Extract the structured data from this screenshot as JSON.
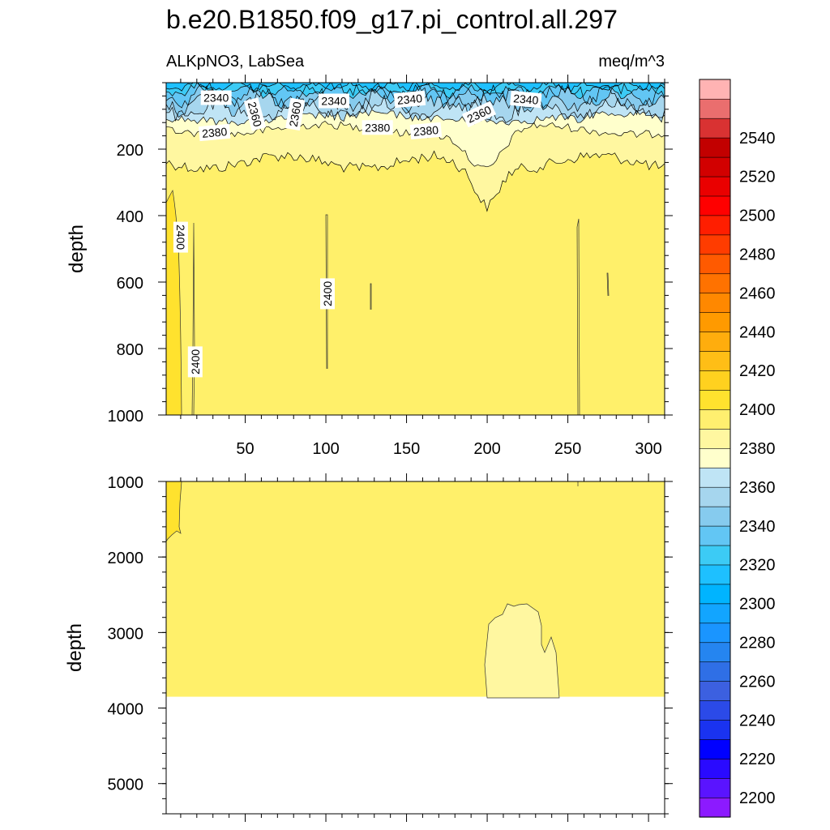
{
  "chart_data": {
    "type": "contour",
    "title": "b.e20.B1850.f09_g17.pi_control.all.297",
    "variable_label": "ALKpNO3, LabSea",
    "units_label": "meq/m^3",
    "colorbar": {
      "levels": [
        2190,
        2200,
        2210,
        2220,
        2230,
        2240,
        2250,
        2260,
        2270,
        2280,
        2290,
        2300,
        2310,
        2320,
        2330,
        2340,
        2350,
        2360,
        2370,
        2380,
        2390,
        2400,
        2410,
        2420,
        2430,
        2440,
        2450,
        2460,
        2470,
        2480,
        2490,
        2500,
        2510,
        2520,
        2530,
        2540,
        2550,
        2560
      ],
      "tick_labels": [
        "2200",
        "2220",
        "2240",
        "2260",
        "2280",
        "2300",
        "2320",
        "2340",
        "2360",
        "2380",
        "2400",
        "2420",
        "2440",
        "2460",
        "2480",
        "2500",
        "2520",
        "2540"
      ],
      "colors": [
        "#8c1aff",
        "#5a14ff",
        "#2a0aff",
        "#0000ff",
        "#1a33f0",
        "#2b4ae8",
        "#3c60e0",
        "#2f6fe6",
        "#2585f0",
        "#1a95ff",
        "#12a5ff",
        "#00b4ff",
        "#1ec0ff",
        "#3ccbf5",
        "#62c6f4",
        "#86cbee",
        "#a6d6ee",
        "#bfe4f5",
        "#ffffcc",
        "#fff7a0",
        "#ffef6f",
        "#ffe22e",
        "#ffd11f",
        "#ffbe16",
        "#ffad0d",
        "#ff9a00",
        "#ff8800",
        "#ff7200",
        "#ff5a00",
        "#ff3c00",
        "#ff1e00",
        "#ff0000",
        "#ea0000",
        "#d20000",
        "#c20000",
        "#d93232",
        "#ea6e6e",
        "#ffb3b3"
      ]
    },
    "panels": [
      {
        "id": "upper",
        "ylabel": "depth",
        "xlim": [
          1,
          310
        ],
        "ylim": [
          0,
          1000
        ],
        "y_inverted": true,
        "x_ticks": [
          "50",
          "100",
          "150",
          "200",
          "250",
          "300"
        ],
        "y_ticks": [
          "200",
          "400",
          "600",
          "800",
          "1000"
        ],
        "contour_labels": [
          {
            "text": "2340",
            "x": 32,
            "y": 45,
            "angle": 0
          },
          {
            "text": "2360",
            "x": 56,
            "y": 95,
            "angle": 75
          },
          {
            "text": "2360",
            "x": 81,
            "y": 95,
            "angle": -80
          },
          {
            "text": "2340",
            "x": 105,
            "y": 55,
            "angle": 0
          },
          {
            "text": "2340",
            "x": 152,
            "y": 50,
            "angle": -5
          },
          {
            "text": "2340",
            "x": 224,
            "y": 50,
            "angle": 5
          },
          {
            "text": "2360",
            "x": 195,
            "y": 95,
            "angle": -25
          },
          {
            "text": "2380",
            "x": 132,
            "y": 135,
            "angle": 0
          },
          {
            "text": "2380",
            "x": 162,
            "y": 145,
            "angle": -5
          },
          {
            "text": "2380",
            "x": 31,
            "y": 150,
            "angle": -5
          },
          {
            "text": "2400",
            "x": 10,
            "y": 465,
            "angle": 90
          },
          {
            "text": "2400",
            "x": 101,
            "y": 635,
            "angle": -90
          },
          {
            "text": "2400",
            "x": 19,
            "y": 840,
            "angle": -90
          }
        ]
      },
      {
        "id": "lower",
        "ylabel": "depth",
        "xlim": [
          1,
          310
        ],
        "ylim": [
          1000,
          5400
        ],
        "y_inverted": true,
        "bottom_depth": 3850,
        "y_ticks": [
          "1000",
          "2000",
          "3000",
          "4000",
          "5000"
        ]
      }
    ]
  }
}
